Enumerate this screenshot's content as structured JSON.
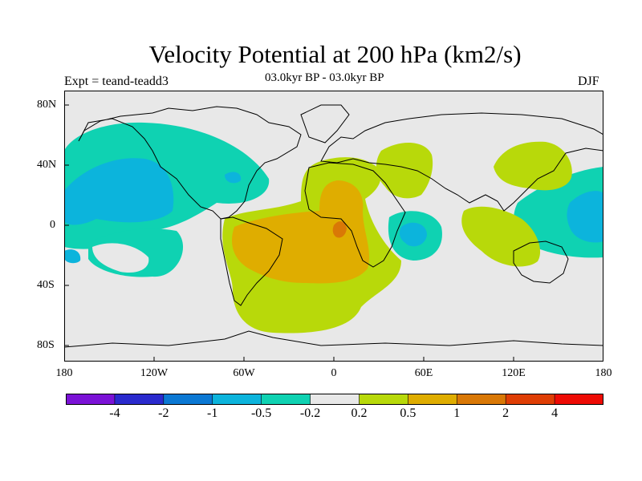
{
  "title": "Velocity Potential at 200 hPa (km2/s)",
  "experiment": "Expt = teand-teadd3",
  "period": "03.0kyr BP - 03.0kyr BP",
  "season": "DJF",
  "y_axis_labels": [
    "80N",
    "40N",
    "0",
    "40S",
    "80S"
  ],
  "x_axis_labels": [
    "180",
    "120W",
    "60W",
    "0",
    "60E",
    "120E",
    "180"
  ],
  "colorbar": {
    "colors": [
      "#7b12d6",
      "#2a2acd",
      "#0b78d3",
      "#0cb4dc",
      "#0fd2b2",
      "#e8e8e8",
      "#b8d90a",
      "#dfad00",
      "#d97806",
      "#df3e05",
      "#ee0b05"
    ],
    "labels": [
      "-4",
      "-2",
      "-1",
      "-0.5",
      "-0.2",
      "0.2",
      "0.5",
      "1",
      "2",
      "4"
    ]
  },
  "map": {
    "background_color": "#e8e8e8",
    "land_outline_color": "#000000"
  }
}
